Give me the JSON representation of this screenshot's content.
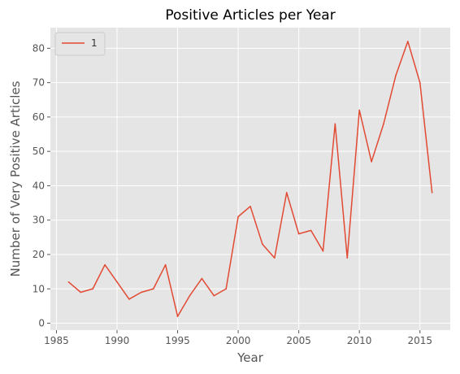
{
  "chart_data": {
    "type": "line",
    "title": "Positive Articles per Year",
    "xlabel": "Year",
    "ylabel": "Number of Very Positive Articles",
    "xlim": [
      1984.5,
      2017.5
    ],
    "ylim": [
      -2,
      86
    ],
    "x_ticks": [
      1985,
      1990,
      1995,
      2000,
      2005,
      2010,
      2015
    ],
    "y_ticks": [
      0,
      10,
      20,
      30,
      40,
      50,
      60,
      70,
      80
    ],
    "grid": true,
    "legend": "top-left",
    "x": [
      1986,
      1987,
      1988,
      1989,
      1990,
      1991,
      1992,
      1993,
      1994,
      1995,
      1996,
      1997,
      1998,
      1999,
      2000,
      2001,
      2002,
      2003,
      2004,
      2005,
      2006,
      2007,
      2008,
      2009,
      2010,
      2011,
      2012,
      2013,
      2014,
      2015,
      2016
    ],
    "series": [
      {
        "name": "1",
        "color": "#E24A33",
        "values": [
          12,
          9,
          10,
          17,
          12,
          7,
          9,
          10,
          17,
          2,
          8,
          13,
          8,
          10,
          31,
          34,
          23,
          19,
          38,
          26,
          27,
          21,
          58,
          19,
          62,
          47,
          58,
          72,
          82,
          70,
          38
        ]
      }
    ]
  },
  "colors": {
    "plot_background": "#E5E5E5",
    "grid": "#FFFFFF"
  }
}
